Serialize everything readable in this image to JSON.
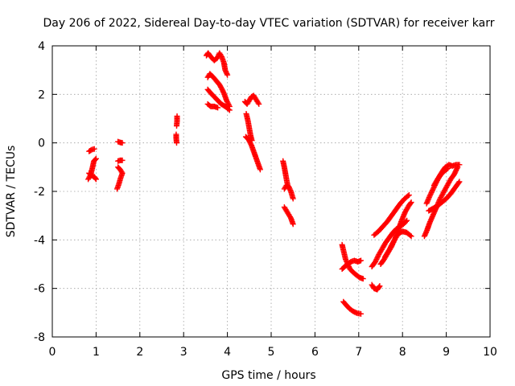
{
  "chart_data": {
    "type": "scatter",
    "title": "Day 206 of 2022, Sidereal Day-to-day VTEC variation (SDTVAR) for receiver karr",
    "xlabel": "GPS time / hours",
    "ylabel": "SDTVAR / TECUs",
    "xlim": [
      0,
      10
    ],
    "ylim": [
      -8,
      4
    ],
    "xticks": [
      "0",
      "1",
      "2",
      "3",
      "4",
      "5",
      "6",
      "7",
      "8",
      "9",
      "10"
    ],
    "yticks": [
      "-8",
      "-6",
      "-4",
      "-2",
      "0",
      "2",
      "4"
    ],
    "grid": true,
    "marker": "plus",
    "color": "#ff0000",
    "segments": [
      [
        [
          0.84,
          -0.35
        ],
        [
          0.9,
          -0.28
        ],
        [
          0.96,
          -0.25
        ]
      ],
      [
        [
          0.82,
          -1.5
        ],
        [
          0.88,
          -1.3
        ],
        [
          0.92,
          -1.0
        ],
        [
          0.95,
          -0.75
        ],
        [
          1.0,
          -0.65
        ]
      ],
      [
        [
          0.84,
          -1.25
        ],
        [
          0.9,
          -1.35
        ],
        [
          0.96,
          -1.4
        ],
        [
          1.0,
          -1.5
        ]
      ],
      [
        [
          1.5,
          0.05
        ],
        [
          1.55,
          0.02
        ],
        [
          1.6,
          0.0
        ]
      ],
      [
        [
          1.5,
          -0.75
        ],
        [
          1.55,
          -0.72
        ],
        [
          1.6,
          -0.72
        ]
      ],
      [
        [
          1.48,
          -1.9
        ],
        [
          1.52,
          -1.7
        ],
        [
          1.56,
          -1.45
        ],
        [
          1.6,
          -1.25
        ],
        [
          1.55,
          -1.1
        ],
        [
          1.5,
          -1.0
        ]
      ],
      [
        [
          2.85,
          1.1
        ],
        [
          2.85,
          0.9
        ],
        [
          2.84,
          0.7
        ]
      ],
      [
        [
          2.83,
          0.35
        ],
        [
          2.83,
          0.2
        ],
        [
          2.84,
          0.0
        ]
      ],
      [
        [
          3.52,
          3.6
        ],
        [
          3.56,
          3.7
        ],
        [
          3.62,
          3.55
        ],
        [
          3.7,
          3.4
        ],
        [
          3.77,
          3.5
        ],
        [
          3.82,
          3.7
        ],
        [
          3.87,
          3.55
        ],
        [
          3.92,
          3.3
        ],
        [
          3.95,
          3.0
        ],
        [
          4.0,
          2.8
        ]
      ],
      [
        [
          3.55,
          2.7
        ],
        [
          3.6,
          2.85
        ],
        [
          3.68,
          2.7
        ],
        [
          3.75,
          2.55
        ],
        [
          3.82,
          2.4
        ],
        [
          3.88,
          2.2
        ],
        [
          3.93,
          2.0
        ],
        [
          3.98,
          1.75
        ],
        [
          4.05,
          1.5
        ]
      ],
      [
        [
          3.55,
          2.2
        ],
        [
          3.62,
          2.05
        ],
        [
          3.7,
          1.9
        ],
        [
          3.78,
          1.75
        ],
        [
          3.86,
          1.6
        ],
        [
          3.95,
          1.5
        ],
        [
          4.05,
          1.35
        ]
      ],
      [
        [
          3.55,
          1.6
        ],
        [
          3.62,
          1.5
        ],
        [
          3.7,
          1.5
        ],
        [
          3.78,
          1.45
        ]
      ],
      [
        [
          4.4,
          1.7
        ],
        [
          4.45,
          1.6
        ],
        [
          4.5,
          1.75
        ],
        [
          4.55,
          1.9
        ],
        [
          4.6,
          1.95
        ],
        [
          4.65,
          1.8
        ],
        [
          4.72,
          1.6
        ]
      ],
      [
        [
          4.43,
          1.2
        ],
        [
          4.47,
          0.9
        ],
        [
          4.5,
          0.6
        ],
        [
          4.53,
          0.3
        ],
        [
          4.56,
          0.1
        ]
      ],
      [
        [
          4.42,
          0.25
        ],
        [
          4.48,
          0.15
        ],
        [
          4.55,
          -0.1
        ],
        [
          4.6,
          -0.35
        ],
        [
          4.65,
          -0.6
        ],
        [
          4.7,
          -0.85
        ],
        [
          4.75,
          -1.1
        ]
      ],
      [
        [
          5.27,
          -0.75
        ],
        [
          5.3,
          -1.0
        ],
        [
          5.33,
          -1.3
        ],
        [
          5.36,
          -1.6
        ],
        [
          5.39,
          -1.85
        ]
      ],
      [
        [
          5.3,
          -1.9
        ],
        [
          5.35,
          -1.75
        ],
        [
          5.4,
          -1.8
        ],
        [
          5.45,
          -2.0
        ],
        [
          5.5,
          -2.3
        ]
      ],
      [
        [
          5.3,
          -2.65
        ],
        [
          5.35,
          -2.8
        ],
        [
          5.4,
          -2.95
        ],
        [
          5.45,
          -3.1
        ],
        [
          5.5,
          -3.35
        ]
      ],
      [
        [
          6.62,
          -4.2
        ],
        [
          6.66,
          -4.5
        ],
        [
          6.7,
          -4.8
        ],
        [
          6.75,
          -5.0
        ],
        [
          6.82,
          -4.9
        ],
        [
          6.9,
          -4.85
        ],
        [
          6.98,
          -4.9
        ],
        [
          7.05,
          -4.85
        ]
      ],
      [
        [
          6.62,
          -5.2
        ],
        [
          6.68,
          -5.1
        ],
        [
          6.75,
          -5.0
        ],
        [
          6.8,
          -5.2
        ],
        [
          6.88,
          -5.35
        ],
        [
          6.95,
          -5.45
        ],
        [
          7.02,
          -5.55
        ],
        [
          7.1,
          -5.6
        ]
      ],
      [
        [
          6.65,
          -6.55
        ],
        [
          6.72,
          -6.7
        ],
        [
          6.8,
          -6.85
        ],
        [
          6.88,
          -6.95
        ],
        [
          6.96,
          -7.02
        ],
        [
          7.05,
          -7.05
        ]
      ],
      [
        [
          7.3,
          -5.85
        ],
        [
          7.35,
          -6.0
        ],
        [
          7.42,
          -6.05
        ],
        [
          7.48,
          -5.9
        ]
      ],
      [
        [
          7.3,
          -5.1
        ],
        [
          7.38,
          -4.9
        ],
        [
          7.46,
          -4.6
        ],
        [
          7.54,
          -4.35
        ],
        [
          7.62,
          -4.1
        ],
        [
          7.7,
          -3.9
        ],
        [
          7.78,
          -3.7
        ],
        [
          7.86,
          -3.55
        ],
        [
          7.94,
          -3.45
        ],
        [
          8.02,
          -3.35
        ],
        [
          8.1,
          -3.2
        ]
      ],
      [
        [
          7.35,
          -3.8
        ],
        [
          7.45,
          -3.65
        ],
        [
          7.55,
          -3.45
        ],
        [
          7.65,
          -3.25
        ],
        [
          7.75,
          -3.0
        ],
        [
          7.85,
          -2.75
        ],
        [
          7.95,
          -2.5
        ],
        [
          8.05,
          -2.3
        ],
        [
          8.15,
          -2.15
        ]
      ],
      [
        [
          7.5,
          -5.0
        ],
        [
          7.58,
          -4.8
        ],
        [
          7.66,
          -4.55
        ],
        [
          7.74,
          -4.3
        ],
        [
          7.82,
          -4.0
        ],
        [
          7.9,
          -3.6
        ],
        [
          7.98,
          -3.2
        ],
        [
          8.06,
          -2.85
        ],
        [
          8.14,
          -2.6
        ],
        [
          8.2,
          -2.45
        ]
      ],
      [
        [
          7.6,
          -4.7
        ],
        [
          7.7,
          -4.4
        ],
        [
          7.8,
          -4.05
        ],
        [
          7.9,
          -3.75
        ],
        [
          8.0,
          -3.65
        ],
        [
          8.1,
          -3.7
        ],
        [
          8.2,
          -3.85
        ]
      ],
      [
        [
          8.5,
          -3.85
        ],
        [
          8.56,
          -3.6
        ],
        [
          8.62,
          -3.3
        ],
        [
          8.68,
          -3.05
        ],
        [
          8.74,
          -2.8
        ],
        [
          8.8,
          -2.55
        ],
        [
          8.86,
          -2.3
        ],
        [
          8.92,
          -2.1
        ],
        [
          8.98,
          -1.9
        ],
        [
          9.04,
          -1.7
        ],
        [
          9.1,
          -1.5
        ],
        [
          9.18,
          -1.3
        ],
        [
          9.26,
          -1.0
        ]
      ],
      [
        [
          8.55,
          -2.5
        ],
        [
          8.62,
          -2.2
        ],
        [
          8.7,
          -1.9
        ],
        [
          8.78,
          -1.6
        ],
        [
          8.85,
          -1.35
        ],
        [
          8.92,
          -1.15
        ],
        [
          8.98,
          -1.0
        ],
        [
          9.06,
          -0.9
        ],
        [
          9.14,
          -0.95
        ],
        [
          9.22,
          -0.9
        ],
        [
          9.3,
          -0.9
        ]
      ],
      [
        [
          8.6,
          -2.8
        ],
        [
          8.7,
          -2.7
        ],
        [
          8.8,
          -2.6
        ],
        [
          8.9,
          -2.45
        ],
        [
          9.0,
          -2.3
        ],
        [
          9.1,
          -2.1
        ],
        [
          9.2,
          -1.85
        ],
        [
          9.3,
          -1.6
        ]
      ],
      [
        [
          8.72,
          -1.75
        ],
        [
          8.8,
          -1.5
        ],
        [
          8.88,
          -1.3
        ],
        [
          8.96,
          -1.15
        ],
        [
          9.04,
          -1.05
        ]
      ]
    ]
  }
}
